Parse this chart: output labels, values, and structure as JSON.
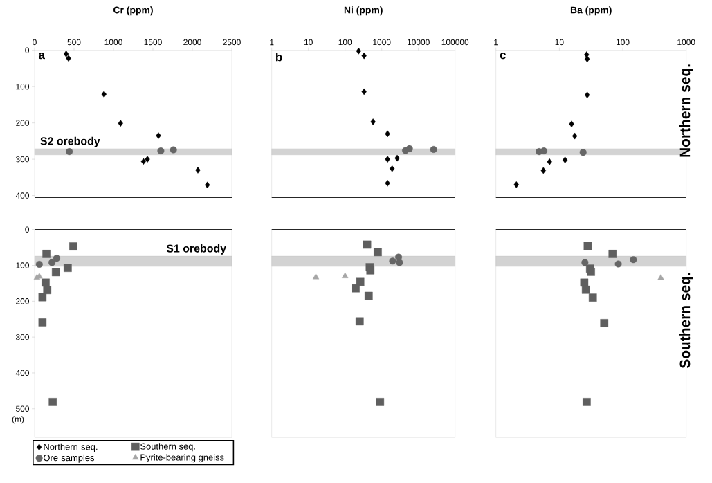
{
  "chart_data": [
    {
      "type": "scatter",
      "xlabel": "Cr (ppm)",
      "annotations": [
        "a"
      ],
      "legend": "bottom",
      "xlim": [
        0,
        2500
      ],
      "xticks": [
        0,
        500,
        1000,
        1500,
        2000,
        2500
      ],
      "ylim": [
        405,
        0
      ],
      "yticks": [
        0,
        100,
        200,
        300,
        400
      ],
      "bands": [
        {
          "axis": "y",
          "from": 271,
          "to": 288,
          "label": "S2 orebody",
          "color": "#d3d3d3"
        }
      ],
      "series": [
        {
          "name": "Northern seq.",
          "color": "#000000",
          "marker": "diamond",
          "x": [
            400,
            430,
            880,
            1090,
            1570,
            1380,
            1430,
            2070,
            2190
          ],
          "values": [
            10,
            22,
            121,
            201,
            235,
            306,
            300,
            330,
            371
          ]
        },
        {
          "name": "Ore samples",
          "color": "#666666",
          "marker": "circle",
          "x": [
            440,
            1600,
            1760
          ],
          "values": [
            279,
            277,
            274
          ]
        }
      ]
    },
    {
      "type": "scatter",
      "xlabel": "Ni (ppm)",
      "annotations": [
        "b"
      ],
      "log": "x",
      "xlim": [
        1,
        100000
      ],
      "xticks": [
        1,
        10,
        100,
        1000,
        10000,
        100000
      ],
      "ylim": [
        405,
        0
      ],
      "tick_labels": "x",
      "bands": [
        {
          "axis": "y",
          "from": 271,
          "to": 288,
          "color": "#d3d3d3"
        }
      ],
      "series": [
        {
          "color": "#000000",
          "marker": "diamond",
          "x": [
            235,
            330,
            330,
            580,
            1440,
            1440,
            2640,
            1920,
            1440
          ],
          "values": [
            2,
            15,
            114,
            197,
            230,
            300,
            297,
            326,
            366
          ]
        },
        {
          "color": "#666666",
          "marker": "circle",
          "x": [
            4450,
            5690,
            26000
          ],
          "values": [
            276,
            271,
            273
          ]
        }
      ]
    },
    {
      "type": "scatter",
      "xlabel": "Ba (ppm)",
      "annotations": [
        "c"
      ],
      "y2label": "Northern seq.",
      "log": "x",
      "xlim": [
        1,
        1000
      ],
      "xticks": [
        1,
        10,
        100,
        1000
      ],
      "ylim": [
        405,
        0
      ],
      "tick_labels": "x",
      "bands": [
        {
          "axis": "y",
          "from": 271,
          "to": 288,
          "color": "#d3d3d3"
        }
      ],
      "series": [
        {
          "color": "#000000",
          "marker": "diamond",
          "x": [
            26.9,
            27.5,
            27.5,
            15.6,
            17.5,
            12.3,
            7.0,
            5.6,
            2.1
          ],
          "values": [
            12,
            24,
            123,
            203,
            236,
            302,
            307,
            331,
            370
          ]
        },
        {
          "color": "#666666",
          "marker": "circle",
          "x": [
            4.8,
            5.7,
            23.7
          ],
          "values": [
            279,
            277,
            281
          ]
        }
      ]
    },
    {
      "type": "scatter",
      "ylabel": "(m)",
      "legend": "bottom",
      "xlim": [
        0,
        2500
      ],
      "ylim": [
        580,
        0
      ],
      "yticks": [
        0,
        100,
        200,
        300,
        400,
        500
      ],
      "tick_labels": "y",
      "bands": [
        {
          "axis": "y",
          "from": 74,
          "to": 103,
          "label": "S1 orebody",
          "color": "#d3d3d3"
        }
      ],
      "series": [
        {
          "name": "Southern seq.",
          "color": "#5f5f5f",
          "marker": "square",
          "x": [
            490,
            150,
            270,
            420,
            140,
            160,
            100,
            100,
            230
          ],
          "values": [
            47,
            68,
            119,
            107,
            148,
            169,
            189,
            259,
            481
          ]
        },
        {
          "color": "#666666",
          "marker": "circle",
          "x": [
            60,
            220,
            280
          ],
          "values": [
            97,
            92,
            80
          ]
        },
        {
          "name": "Pyrite-bearing gneiss",
          "color": "#a6a6a6",
          "marker": "triangle",
          "x": [
            30,
            60
          ],
          "values": [
            134,
            131
          ]
        }
      ]
    },
    {
      "type": "scatter",
      "log": "x",
      "xlim": [
        1,
        100000
      ],
      "ylim": [
        580,
        0
      ],
      "tick_labels": false,
      "bands": [
        {
          "axis": "y",
          "from": 74,
          "to": 103,
          "color": "#d3d3d3"
        }
      ],
      "series": [
        {
          "color": "#5f5f5f",
          "marker": "square",
          "x": [
            400,
            780,
            470,
            490,
            260,
            195,
            440,
            250,
            900
          ],
          "values": [
            42,
            63,
            105,
            114,
            146,
            164,
            185,
            256,
            481
          ]
        },
        {
          "color": "#666666",
          "marker": "circle",
          "x": [
            1980,
            2880,
            3050
          ],
          "values": [
            88,
            77,
            92
          ]
        },
        {
          "color": "#a6a6a6",
          "marker": "triangle",
          "x": [
            16,
            100
          ],
          "values": [
            133,
            130
          ]
        }
      ]
    },
    {
      "type": "scatter",
      "y2label": "Southern seq.",
      "log": "x",
      "xlim": [
        1,
        1000
      ],
      "ylim": [
        580,
        0
      ],
      "tick_labels": false,
      "bands": [
        {
          "axis": "y",
          "from": 74,
          "to": 103,
          "color": "#d3d3d3"
        }
      ],
      "series": [
        {
          "color": "#5f5f5f",
          "marker": "square",
          "x": [
            28,
            69,
            30.5,
            31.5,
            24.7,
            26.2,
            33.7,
            51,
            27
          ],
          "values": [
            46,
            68,
            109,
            118,
            148,
            168,
            190,
            261,
            481
          ]
        },
        {
          "color": "#666666",
          "marker": "circle",
          "x": [
            25.3,
            85,
            147
          ],
          "values": [
            92,
            96,
            84
          ]
        },
        {
          "color": "#a6a6a6",
          "marker": "triangle",
          "x": [
            398
          ],
          "values": [
            135
          ]
        }
      ]
    }
  ]
}
